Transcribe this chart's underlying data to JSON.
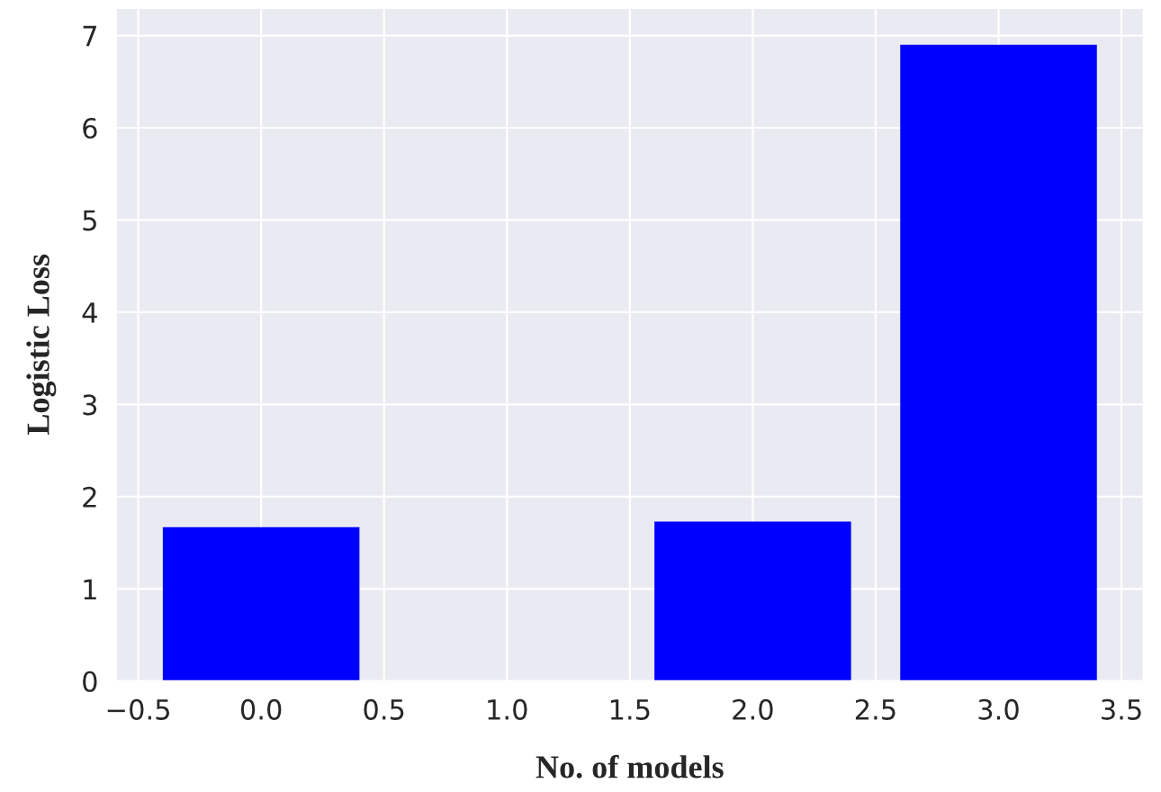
{
  "chart_data": {
    "type": "bar",
    "xlabel": "No. of models",
    "ylabel": "Logistic Loss",
    "x": [
      0,
      1,
      2,
      3
    ],
    "values": [
      1.67,
      null,
      1.73,
      6.9
    ],
    "color": "#0000ff",
    "xlim": [
      -0.59,
      3.59
    ],
    "xticks": [
      {
        "value": -0.5,
        "label": "−0.5"
      },
      {
        "value": 0,
        "label": "0.0"
      },
      {
        "value": 0.5,
        "label": "0.5"
      },
      {
        "value": 1,
        "label": "1.0"
      },
      {
        "value": 1.5,
        "label": "1.5"
      },
      {
        "value": 2,
        "label": "2.0"
      },
      {
        "value": 2.5,
        "label": "2.5"
      },
      {
        "value": 3,
        "label": "3.0"
      },
      {
        "value": 3.5,
        "label": "3.5"
      }
    ],
    "ylim": [
      0,
      7.3
    ],
    "yticks": [
      0,
      1,
      2,
      3,
      4,
      5,
      6,
      7
    ],
    "grid": true
  }
}
